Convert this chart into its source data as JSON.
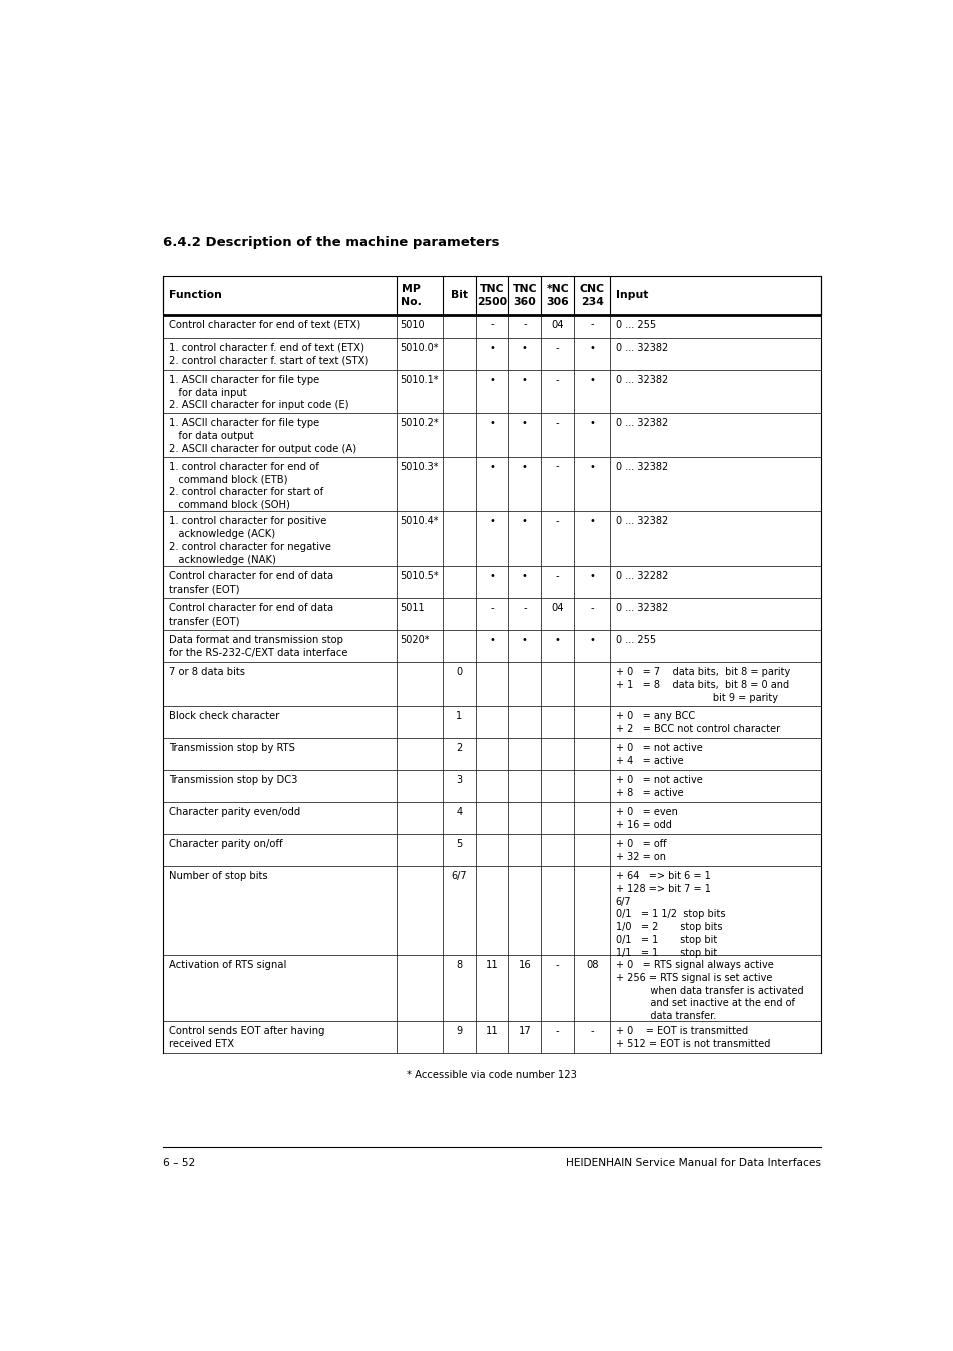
{
  "title": "6.4.2 Description of the machine parameters",
  "footer_left": "6 – 52",
  "footer_right": "HEIDENHAIN Service Manual for Data Interfaces",
  "footnote": "* Accessible via code number 123",
  "bg_color": "#ffffff",
  "text_color": "#000000",
  "rows": [
    {
      "func": "Control character for end of text (ETX)",
      "mp_no": "5010",
      "bit": "",
      "tnc2500": "-",
      "tnc360": "-",
      "nc306": "04",
      "cnc234": "-",
      "input": "0 ... 255",
      "nlines": 1
    },
    {
      "func": "1. control character f. end of text (ETX)\n2. control character f. start of text (STX)",
      "mp_no": "5010.0*",
      "bit": "",
      "tnc2500": "•",
      "tnc360": "•",
      "nc306": "-",
      "cnc234": "•",
      "input": "0 ... 32382",
      "nlines": 2
    },
    {
      "func": "1. ASCII character for file type\n   for data input\n2. ASCII character for input code (E)",
      "mp_no": "5010.1*",
      "bit": "",
      "tnc2500": "•",
      "tnc360": "•",
      "nc306": "-",
      "cnc234": "•",
      "input": "0 ... 32382",
      "nlines": 3
    },
    {
      "func": "1. ASCII character for file type\n   for data output\n2. ASCII character for output code (A)",
      "mp_no": "5010.2*",
      "bit": "",
      "tnc2500": "•",
      "tnc360": "•",
      "nc306": "-",
      "cnc234": "•",
      "input": "0 ... 32382",
      "nlines": 3
    },
    {
      "func": "1. control character for end of\n   command block (ETB)\n2. control character for start of\n   command block (SOH)",
      "mp_no": "5010.3*",
      "bit": "",
      "tnc2500": "•",
      "tnc360": "•",
      "nc306": "-",
      "cnc234": "•",
      "input": "0 ... 32382",
      "nlines": 4
    },
    {
      "func": "1. control character for positive\n   acknowledge (ACK)\n2. control character for negative\n   acknowledge (NAK)",
      "mp_no": "5010.4*",
      "bit": "",
      "tnc2500": "•",
      "tnc360": "•",
      "nc306": "-",
      "cnc234": "•",
      "input": "0 ... 32382",
      "nlines": 4
    },
    {
      "func": "Control character for end of data\ntransfer (EOT)",
      "mp_no": "5010.5*",
      "bit": "",
      "tnc2500": "•",
      "tnc360": "•",
      "nc306": "-",
      "cnc234": "•",
      "input": "0 ... 32282",
      "nlines": 2
    },
    {
      "func": "Control character for end of data\ntransfer (EOT)",
      "mp_no": "5011",
      "bit": "",
      "tnc2500": "-",
      "tnc360": "-",
      "nc306": "04",
      "cnc234": "-",
      "input": "0 ... 32382",
      "nlines": 2
    },
    {
      "func": "Data format and transmission stop\nfor the RS-232-C/EXT data interface",
      "mp_no": "5020*",
      "bit": "",
      "tnc2500": "•",
      "tnc360": "•",
      "nc306": "•",
      "cnc234": "•",
      "input": "0 ... 255",
      "nlines": 2
    },
    {
      "func": "7 or 8 data bits",
      "mp_no": "",
      "bit": "0",
      "tnc2500": "",
      "tnc360": "",
      "nc306": "",
      "cnc234": "",
      "input": "+ 0   = 7    data bits,  bit 8 = parity\n+ 1   = 8    data bits,  bit 8 = 0 and\n                               bit 9 = parity",
      "nlines": 3
    },
    {
      "func": "Block check character",
      "mp_no": "",
      "bit": "1",
      "tnc2500": "",
      "tnc360": "",
      "nc306": "",
      "cnc234": "",
      "input": "+ 0   = any BCC\n+ 2   = BCC not control character",
      "nlines": 2
    },
    {
      "func": "Transmission stop by RTS",
      "mp_no": "",
      "bit": "2",
      "tnc2500": "",
      "tnc360": "",
      "nc306": "",
      "cnc234": "",
      "input": "+ 0   = not active\n+ 4   = active",
      "nlines": 2
    },
    {
      "func": "Transmission stop by DC3",
      "mp_no": "",
      "bit": "3",
      "tnc2500": "",
      "tnc360": "",
      "nc306": "",
      "cnc234": "",
      "input": "+ 0   = not active\n+ 8   = active",
      "nlines": 2
    },
    {
      "func": "Character parity even/odd",
      "mp_no": "",
      "bit": "4",
      "tnc2500": "",
      "tnc360": "",
      "nc306": "",
      "cnc234": "",
      "input": "+ 0   = even\n+ 16 = odd",
      "nlines": 2
    },
    {
      "func": "Character parity on/off",
      "mp_no": "",
      "bit": "5",
      "tnc2500": "",
      "tnc360": "",
      "nc306": "",
      "cnc234": "",
      "input": "+ 0   = off\n+ 32 = on",
      "nlines": 2
    },
    {
      "func": "Number of stop bits",
      "mp_no": "",
      "bit": "6/7",
      "tnc2500": "",
      "tnc360": "",
      "nc306": "",
      "cnc234": "",
      "input": "+ 64   => bit 6 = 1\n+ 128 => bit 7 = 1\n6/7\n0/1   = 1 1/2  stop bits\n1/0   = 2       stop bits\n0/1   = 1       stop bit\n1/1   = 1       stop bit",
      "nlines": 7
    },
    {
      "func": "Activation of RTS signal",
      "mp_no": "",
      "bit": "8",
      "tnc2500": "11",
      "tnc360": "16",
      "nc306": "-",
      "cnc234": "08",
      "input": "+ 0   = RTS signal always active\n+ 256 = RTS signal is set active\n           when data transfer is activated\n           and set inactive at the end of\n           data transfer.",
      "nlines": 5
    },
    {
      "func": "Control sends EOT after having\nreceived ETX",
      "mp_no": "",
      "bit": "9",
      "tnc2500": "11",
      "tnc360": "17",
      "nc306": "-",
      "cnc234": "-",
      "input": "+ 0    = EOT is transmitted\n+ 512 = EOT is not transmitted",
      "nlines": 2
    }
  ]
}
